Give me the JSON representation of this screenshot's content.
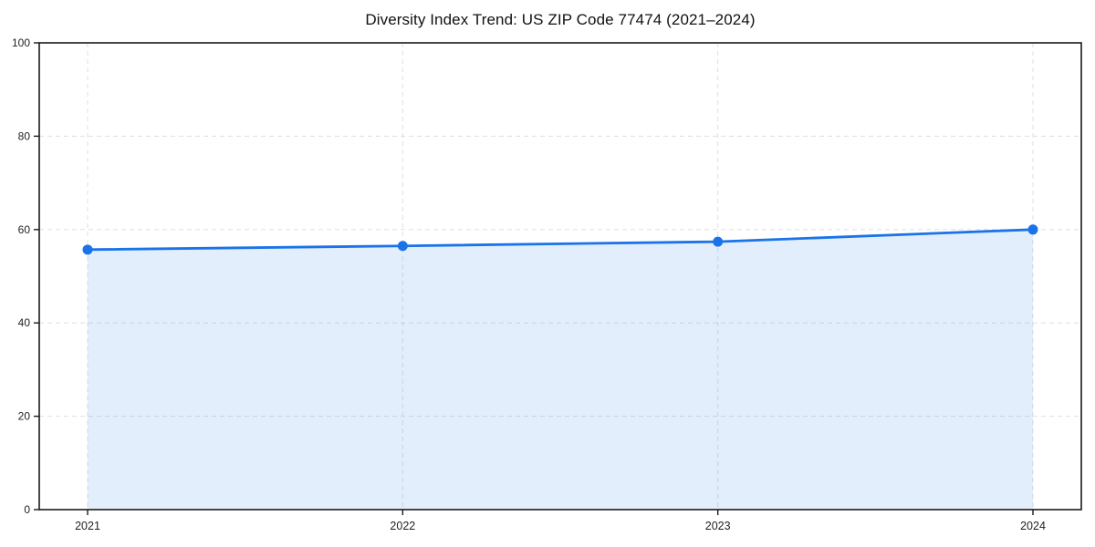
{
  "chart_data": {
    "type": "line",
    "title": "Diversity Index Trend: US ZIP Code 77474 (2021–2024)",
    "x": [
      "2021",
      "2022",
      "2023",
      "2024"
    ],
    "series": [
      {
        "name": "Diversity Index",
        "values": [
          55.7,
          56.5,
          57.4,
          60.0
        ]
      }
    ],
    "xlabel": "",
    "ylabel": "",
    "ylim": [
      0,
      100
    ],
    "yticks": [
      0,
      20,
      40,
      60,
      80,
      100
    ],
    "grid": true,
    "grid_style": "dashed",
    "legend_position": "none",
    "area_fill": true,
    "colors": {
      "line": "#1a73e8",
      "marker": "#1a73e8",
      "area_fill": "rgba(26,115,232,0.12)",
      "grid": "#dfdfdf",
      "axis": "#1a1a1a",
      "tick_label": "#222222",
      "title": "#111111",
      "background": "#ffffff"
    }
  }
}
